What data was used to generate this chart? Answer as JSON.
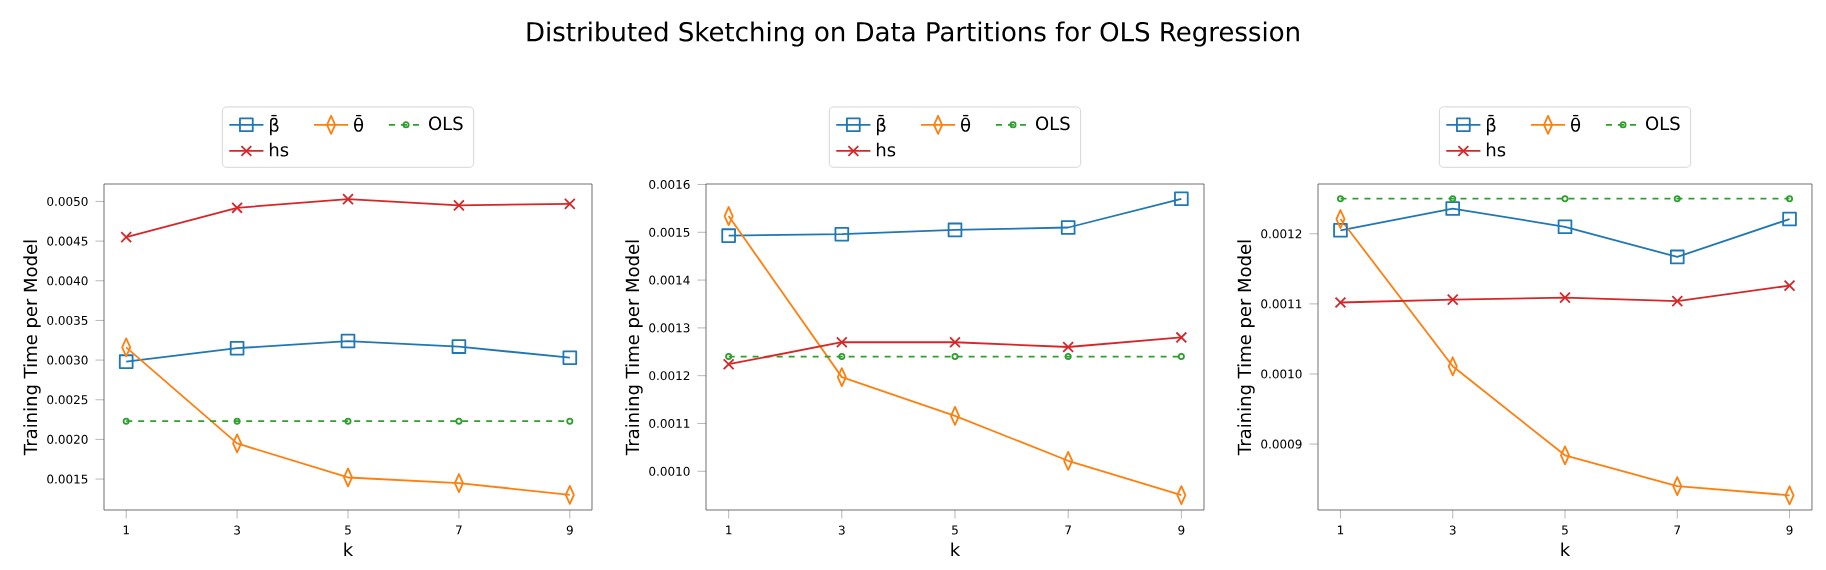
{
  "chart_data": [
    {
      "type": "line",
      "xlabel": "k",
      "ylabel": "Training Time per Model",
      "legend": "top",
      "grid": false,
      "x": [
        1,
        3,
        5,
        7,
        9
      ],
      "xlim": [
        0.6,
        9.4
      ],
      "xticks": [
        1,
        3,
        5,
        7,
        9
      ],
      "ylim": [
        0.00111,
        0.00522
      ],
      "yticks": [
        {
          "value": 0.0015,
          "label": "0.0015"
        },
        {
          "value": 0.002,
          "label": "0.0020"
        },
        {
          "value": 0.0025,
          "label": "0.0025"
        },
        {
          "value": 0.003,
          "label": "0.0030"
        },
        {
          "value": 0.0035,
          "label": "0.0035"
        },
        {
          "value": 0.004,
          "label": "0.0040"
        },
        {
          "value": 0.0045,
          "label": "0.0045"
        },
        {
          "value": 0.005,
          "label": "0.0050"
        }
      ],
      "series": [
        {
          "name": "β̄",
          "color": "#1f77b4",
          "marker": "square",
          "line_style": "solid",
          "values": [
            0.00298,
            0.00315,
            0.00324,
            0.00317,
            0.00303
          ]
        },
        {
          "name": "θ̄",
          "color": "#ff7f0e",
          "marker": "diamond",
          "line_style": "solid",
          "values": [
            0.00316,
            0.00195,
            0.00152,
            0.00145,
            0.0013
          ]
        },
        {
          "name": "OLS",
          "color": "#2ca02c",
          "marker": "circle",
          "line_style": "dashed",
          "values": [
            0.00223,
            0.00223,
            0.00223,
            0.00223,
            0.00223
          ]
        },
        {
          "name": "hs",
          "color": "#d62728",
          "marker": "cross",
          "line_style": "solid",
          "values": [
            0.00455,
            0.00492,
            0.00503,
            0.00495,
            0.00497
          ]
        }
      ]
    },
    {
      "type": "line",
      "title": "Distributed Sketching on Data Partitions for OLS Regression",
      "xlabel": "k",
      "ylabel": "Training Time per Model",
      "legend": "top",
      "grid": false,
      "x": [
        1,
        3,
        5,
        7,
        9
      ],
      "xlim": [
        0.6,
        9.4
      ],
      "xticks": [
        1,
        3,
        5,
        7,
        9
      ],
      "ylim": [
        0.000919,
        0.001601
      ],
      "yticks": [
        {
          "value": 0.001,
          "label": "0.0010"
        },
        {
          "value": 0.0011,
          "label": "0.0011"
        },
        {
          "value": 0.0012,
          "label": "0.0012"
        },
        {
          "value": 0.0013,
          "label": "0.0013"
        },
        {
          "value": 0.0014,
          "label": "0.0014"
        },
        {
          "value": 0.0015,
          "label": "0.0015"
        },
        {
          "value": 0.0016,
          "label": "0.0016"
        }
      ],
      "series": [
        {
          "name": "β̄",
          "color": "#1f77b4",
          "marker": "square",
          "line_style": "solid",
          "values": [
            0.001493,
            0.001496,
            0.001505,
            0.00151,
            0.00157
          ]
        },
        {
          "name": "θ̄",
          "color": "#ff7f0e",
          "marker": "diamond",
          "line_style": "solid",
          "values": [
            0.001534,
            0.001197,
            0.001116,
            0.001022,
            0.00095
          ]
        },
        {
          "name": "OLS",
          "color": "#2ca02c",
          "marker": "circle",
          "line_style": "dashed",
          "values": [
            0.00124,
            0.00124,
            0.00124,
            0.00124,
            0.00124
          ]
        },
        {
          "name": "hs",
          "color": "#d62728",
          "marker": "cross",
          "line_style": "solid",
          "values": [
            0.001224,
            0.00127,
            0.00127,
            0.00126,
            0.00128
          ]
        }
      ]
    },
    {
      "type": "line",
      "xlabel": "k",
      "ylabel": "Training Time per Model",
      "legend": "top",
      "grid": false,
      "x": [
        1,
        3,
        5,
        7,
        9
      ],
      "xlim": [
        0.6,
        9.4
      ],
      "xticks": [
        1,
        3,
        5,
        7,
        9
      ],
      "ylim": [
        0.000806,
        0.001271
      ],
      "yticks": [
        {
          "value": 0.0009,
          "label": "0.0009"
        },
        {
          "value": 0.001,
          "label": "0.0010"
        },
        {
          "value": 0.0011,
          "label": "0.0011"
        },
        {
          "value": 0.0012,
          "label": "0.0012"
        }
      ],
      "series": [
        {
          "name": "β̄",
          "color": "#1f77b4",
          "marker": "square",
          "line_style": "solid",
          "values": [
            0.001205,
            0.001236,
            0.00121,
            0.001167,
            0.001221
          ]
        },
        {
          "name": "θ̄",
          "color": "#ff7f0e",
          "marker": "diamond",
          "line_style": "solid",
          "values": [
            0.001221,
            0.001011,
            0.000884,
            0.00084,
            0.000827
          ]
        },
        {
          "name": "OLS",
          "color": "#2ca02c",
          "marker": "circle",
          "line_style": "dashed",
          "values": [
            0.00125,
            0.00125,
            0.00125,
            0.00125,
            0.00125
          ]
        },
        {
          "name": "hs",
          "color": "#d62728",
          "marker": "cross",
          "line_style": "solid",
          "values": [
            0.001102,
            0.001106,
            0.001109,
            0.001104,
            0.001126
          ]
        }
      ]
    }
  ]
}
